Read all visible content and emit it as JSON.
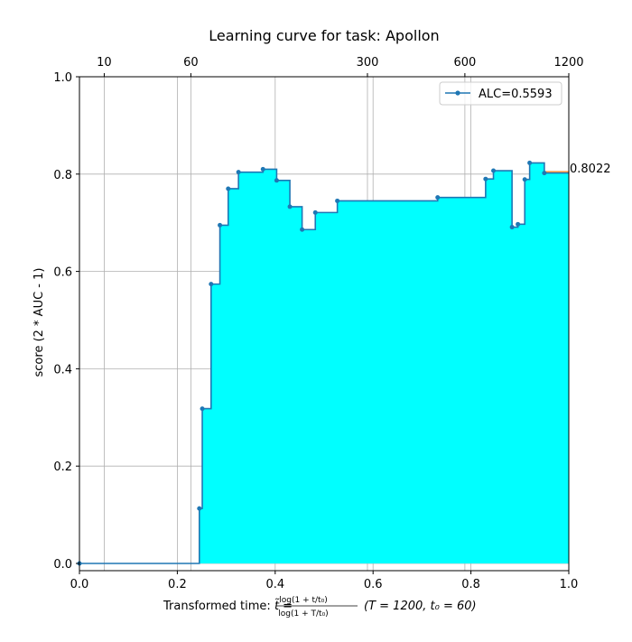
{
  "chart_data": {
    "type": "line",
    "title": "Learning curve for task: Apollon",
    "xlabel": {
      "prefix": "Transformed time: ",
      "tilde_t": "t̃",
      "equals": " = ",
      "frac_num": "log(1 + t/t₀)",
      "frac_den": "log(1 + T/t₀)",
      "params": "(T = 1200,  t₀ = 60)"
    },
    "ylabel": "score (2 * AUC - 1)",
    "xlim": [
      0,
      1
    ],
    "ylim": [
      0,
      1
    ],
    "x_ticks": [
      "0.0",
      "0.2",
      "0.4",
      "0.6",
      "0.8",
      "1.0"
    ],
    "y_ticks": [
      "0.0",
      "0.2",
      "0.4",
      "0.6",
      "0.8",
      "1.0"
    ],
    "top_axis_ticks": [
      {
        "label": "10",
        "seconds": 10
      },
      {
        "label": "60",
        "seconds": 60
      },
      {
        "label": "300",
        "seconds": 300
      },
      {
        "label": "600",
        "seconds": 600
      },
      {
        "label": "1200",
        "seconds": 1200
      }
    ],
    "grid": true,
    "legend": {
      "position": "top-right",
      "label": "ALC=0.5593"
    },
    "final_score_label": "0.8022",
    "series": [
      {
        "name": "ALC=0.5593",
        "step": "post",
        "fill": "area under curve",
        "x": [
          0.0,
          0.245,
          0.251,
          0.269,
          0.287,
          0.304,
          0.325,
          0.375,
          0.403,
          0.43,
          0.455,
          0.482,
          0.527,
          0.732,
          0.83,
          0.846,
          0.884,
          0.896,
          0.91,
          0.92,
          0.95,
          1.0
        ],
        "y": [
          0.0,
          0.113,
          0.318,
          0.574,
          0.695,
          0.77,
          0.804,
          0.81,
          0.787,
          0.733,
          0.686,
          0.721,
          0.745,
          0.752,
          0.79,
          0.807,
          0.691,
          0.697,
          0.789,
          0.823,
          0.8022,
          0.8022
        ]
      }
    ],
    "colors": {
      "line": "#1f77b4",
      "fill": "#00ffff",
      "final_segment": "#ff7f0e",
      "grid": "#b0b0b0"
    }
  }
}
